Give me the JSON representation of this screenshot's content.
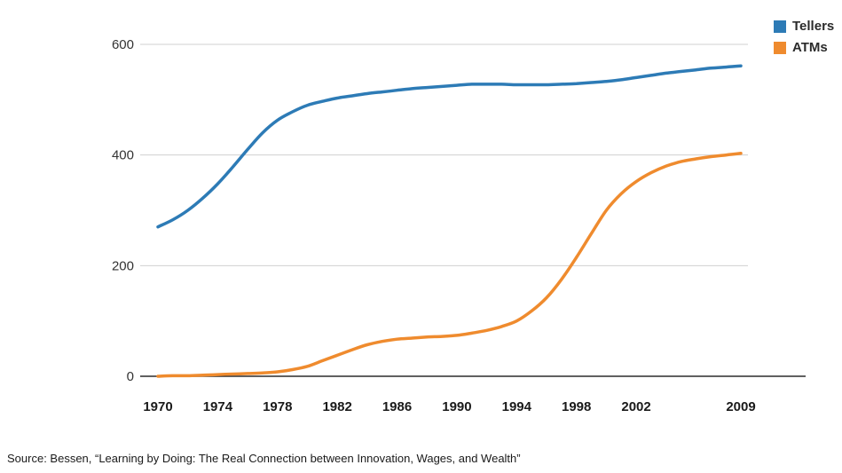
{
  "chart_data": {
    "type": "line",
    "title": "",
    "xlabel": "",
    "ylabel": "",
    "x": [
      1970,
      1971,
      1972,
      1973,
      1974,
      1975,
      1976,
      1977,
      1978,
      1979,
      1980,
      1981,
      1982,
      1983,
      1984,
      1985,
      1986,
      1987,
      1988,
      1989,
      1990,
      1991,
      1992,
      1993,
      1994,
      1995,
      1996,
      1997,
      1998,
      1999,
      2000,
      2001,
      2002,
      2003,
      2004,
      2005,
      2006,
      2007,
      2008,
      2009
    ],
    "series": [
      {
        "name": "Tellers",
        "color": "#2d7bb6",
        "values": [
          270,
          283,
          300,
          322,
          348,
          378,
          410,
          440,
          463,
          478,
          490,
          497,
          503,
          507,
          511,
          514,
          517,
          520,
          522,
          524,
          526,
          528,
          528,
          528,
          527,
          527,
          527,
          528,
          529,
          531,
          533,
          536,
          540,
          544,
          548,
          551,
          554,
          557,
          559,
          561
        ]
      },
      {
        "name": "ATMs",
        "color": "#ef8b2e",
        "values": [
          0,
          1,
          1,
          2,
          3,
          4,
          5,
          6,
          8,
          12,
          18,
          28,
          38,
          48,
          57,
          63,
          67,
          69,
          71,
          72,
          74,
          78,
          83,
          90,
          100,
          118,
          142,
          175,
          215,
          258,
          300,
          330,
          352,
          368,
          380,
          388,
          393,
          397,
          400,
          403
        ]
      }
    ],
    "yticks": [
      0,
      200,
      400,
      600
    ],
    "xticks": [
      1970,
      1974,
      1978,
      1982,
      1986,
      1990,
      1994,
      1998,
      2002,
      2009
    ],
    "ylim": [
      0,
      600
    ],
    "grid": true,
    "legend_position": "top-right",
    "grid_color": "#d0d0d0",
    "axis_color": "#2b2b2b"
  },
  "source": "Source: Bessen, “Learning by Doing: The Real Connection between Innovation, Wages, and Wealth”"
}
